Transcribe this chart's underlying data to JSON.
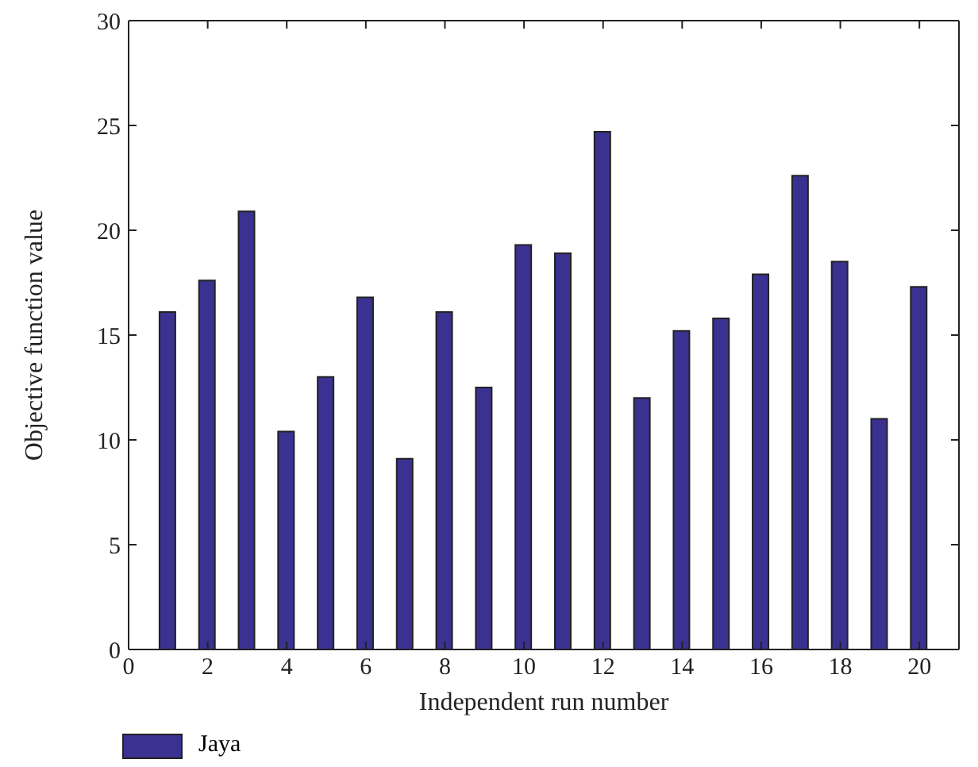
{
  "chart_data": {
    "type": "bar",
    "xlabel": "Independent run number",
    "ylabel": "Objective function value",
    "x": [
      1,
      2,
      3,
      4,
      5,
      6,
      7,
      8,
      9,
      10,
      11,
      12,
      13,
      14,
      15,
      16,
      17,
      18,
      19,
      20
    ],
    "series": [
      {
        "name": "Jaya",
        "color": "#3a3191",
        "values": [
          16.1,
          17.6,
          20.9,
          10.4,
          13.0,
          16.8,
          9.1,
          16.1,
          12.5,
          19.3,
          18.9,
          24.7,
          12.0,
          15.2,
          15.8,
          17.9,
          22.6,
          18.5,
          11.0,
          17.3
        ]
      }
    ],
    "xlim": [
      0,
      21
    ],
    "xticks": [
      0,
      2,
      4,
      6,
      8,
      10,
      12,
      14,
      16,
      18,
      20
    ],
    "ylim": [
      0,
      30
    ],
    "yticks": [
      0,
      5,
      10,
      15,
      20,
      25,
      30
    ],
    "grid": false,
    "legend": "bottom left"
  }
}
